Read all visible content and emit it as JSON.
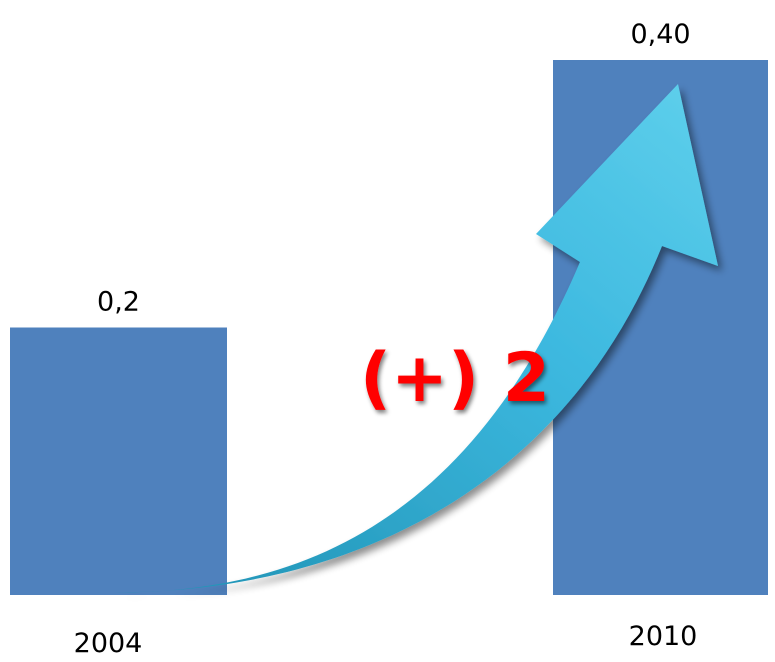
{
  "chart_data": {
    "type": "bar",
    "categories": [
      "2004",
      "2010"
    ],
    "values": [
      0.2,
      0.4
    ],
    "value_labels": [
      "0,2",
      "0,40"
    ],
    "ylim": [
      0,
      0.4
    ],
    "grid": false,
    "annotation": "(+) 2",
    "colors": {
      "bar": "#4f81bd",
      "arrow_dark": "#1e8fb0",
      "arrow_light": "#5fd0ec",
      "annotation": "#ff0000"
    }
  }
}
